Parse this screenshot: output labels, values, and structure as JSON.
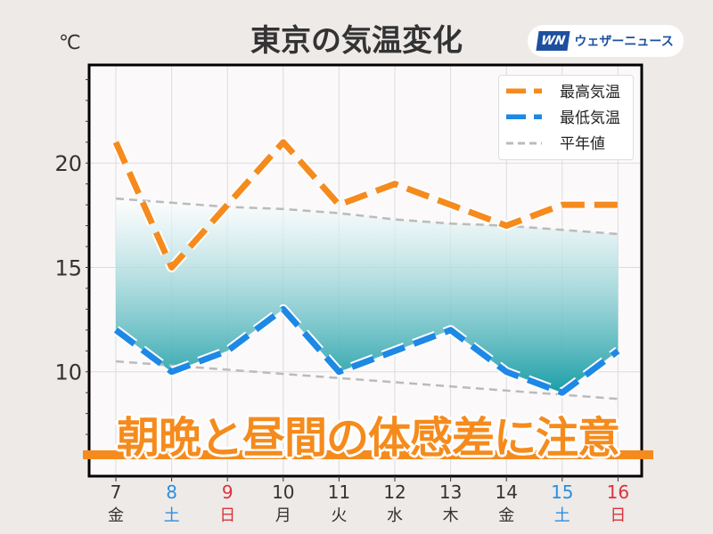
{
  "header": {
    "title": "東京の気温変化",
    "unit": "℃",
    "logo_mark": "WN",
    "logo_text": "ウェザーニュース"
  },
  "banner": {
    "text": "朝晩と昼間の体感差に注意"
  },
  "chart_data": {
    "type": "line",
    "title": "東京の気温変化",
    "ylabel": "℃",
    "ylim": [
      5,
      24.7
    ],
    "yticks": [
      10,
      15,
      20
    ],
    "grid": true,
    "legend_placement": "top-right",
    "x": [
      "7",
      "8",
      "9",
      "10",
      "11",
      "12",
      "13",
      "14",
      "15",
      "16"
    ],
    "weekdays": [
      "金",
      "土",
      "日",
      "月",
      "火",
      "水",
      "木",
      "金",
      "土",
      "日"
    ],
    "day_colors": [
      "#333333",
      "#2b8fe0",
      "#d9343a",
      "#333333",
      "#333333",
      "#333333",
      "#333333",
      "#333333",
      "#2b8fe0",
      "#d9343a"
    ],
    "series": [
      {
        "name": "最高気温",
        "color": "#f58b1d",
        "style": "dashed",
        "values": [
          21,
          15,
          18,
          21,
          18,
          19,
          18,
          17,
          18,
          18
        ]
      },
      {
        "name": "最低気温",
        "color": "#1e88e5",
        "style": "dashed",
        "values": [
          12,
          10,
          11,
          13,
          10,
          11,
          12,
          10,
          9,
          11
        ]
      },
      {
        "name": "平年値",
        "color": "#bbbbbb",
        "style": "dashed",
        "values_high": [
          18.3,
          18.1,
          17.9,
          17.8,
          17.6,
          17.3,
          17.1,
          17.0,
          16.8,
          16.6
        ],
        "values_low": [
          10.5,
          10.3,
          10.1,
          9.9,
          9.7,
          9.5,
          9.3,
          9.1,
          8.9,
          8.7
        ]
      }
    ],
    "fill": {
      "between": "平年値(高)-最低気温",
      "color_top": "#ffffff",
      "color_bottom": "#1a9ea6"
    }
  }
}
